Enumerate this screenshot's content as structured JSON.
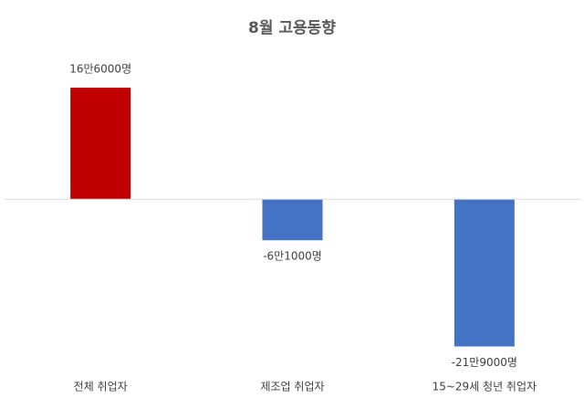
{
  "chart_data": {
    "type": "bar",
    "title": "8월 고용동향",
    "categories": [
      "전체 취업자",
      "제조업 취업자",
      "15~29세 청년 취업자"
    ],
    "values": [
      166000,
      -61000,
      -219000
    ],
    "value_labels": [
      "16만6000명",
      "-6만1000명",
      "-21만9000명"
    ],
    "colors": [
      "#c00000",
      "#4472c4",
      "#4472c4"
    ],
    "ylim": [
      -240000,
      215000
    ]
  }
}
